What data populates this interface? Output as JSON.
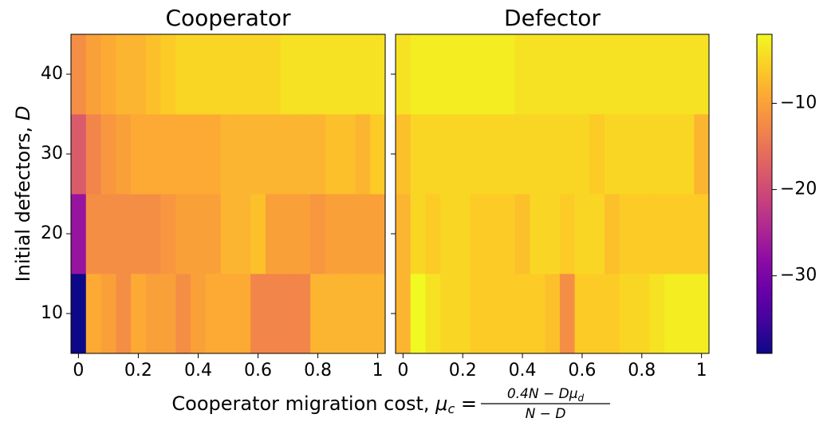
{
  "chart_data": {
    "type": "heatmap",
    "panels": [
      {
        "title": "Cooperator",
        "values": [
          [
            -39,
            -9,
            -10,
            -12,
            -9,
            -10,
            -10,
            -12,
            -10,
            -9,
            -9,
            -9,
            -13,
            -13,
            -13,
            -13,
            -8,
            -8,
            -8,
            -8,
            -8
          ],
          [
            -27,
            -12,
            -12,
            -12,
            -12,
            -12,
            -11,
            -10,
            -10,
            -10,
            -8,
            -8,
            -7,
            -10,
            -10,
            -10,
            -11,
            -10,
            -10,
            -10,
            -10
          ],
          [
            -18,
            -13,
            -11,
            -10,
            -9,
            -9,
            -9,
            -9,
            -9,
            -9,
            -8,
            -8,
            -8,
            -8,
            -8,
            -8,
            -8,
            -7,
            -7,
            -8,
            -6
          ],
          [
            -12,
            -10,
            -9,
            -8,
            -8,
            -7,
            -6,
            -5,
            -5,
            -5,
            -5,
            -5,
            -5,
            -5,
            -4,
            -4,
            -4,
            -4,
            -4,
            -4,
            -4
          ]
        ]
      },
      {
        "title": "Defector",
        "values": [
          [
            -8,
            -2,
            -4,
            -5,
            -5,
            -6,
            -6,
            -6,
            -6,
            -6,
            -7,
            -12,
            -6,
            -6,
            -6,
            -5,
            -5,
            -4,
            -3,
            -3,
            -3
          ],
          [
            -8,
            -5,
            -6,
            -5,
            -5,
            -6,
            -6,
            -6,
            -7,
            -5,
            -5,
            -6,
            -5,
            -5,
            -7,
            -6,
            -6,
            -6,
            -6,
            -6,
            -6
          ],
          [
            -7,
            -5,
            -5,
            -5,
            -5,
            -5,
            -5,
            -5,
            -5,
            -5,
            -5,
            -5,
            -5,
            -6,
            -5,
            -5,
            -5,
            -5,
            -5,
            -5,
            -8
          ],
          [
            -4,
            -3,
            -3,
            -3,
            -3,
            -3,
            -3,
            -3,
            -4,
            -4,
            -4,
            -4,
            -4,
            -4,
            -4,
            -4,
            -4,
            -4,
            -4,
            -4,
            -4
          ]
        ]
      }
    ],
    "x": [
      0,
      0.05,
      0.1,
      0.15,
      0.2,
      0.25,
      0.3,
      0.35,
      0.4,
      0.45,
      0.5,
      0.55,
      0.6,
      0.65,
      0.7,
      0.75,
      0.8,
      0.85,
      0.9,
      0.95,
      1
    ],
    "y": [
      10,
      20,
      30,
      40
    ],
    "xlim": [
      -0.025,
      1.025
    ],
    "ylim": [
      5,
      45
    ],
    "xticks": [
      0,
      0.2,
      0.4,
      0.6,
      0.8,
      1
    ],
    "yticks": [
      10,
      20,
      30,
      40
    ],
    "cmap": "plasma",
    "clim": [
      -39,
      -2
    ],
    "cticks": [
      {
        "value": -30,
        "label": "−30"
      },
      {
        "value": -20,
        "label": "−20"
      },
      {
        "value": -10,
        "label": "−10"
      }
    ],
    "xlabel": {
      "text": "Cooperator migration cost, ",
      "symbol": "μ",
      "sub": "c",
      "eq": " =",
      "numerator": "0.4N − Dμ",
      "numerator_sub": "d",
      "denominator": "N − D"
    },
    "ylabel": {
      "text": "Initial defectors, ",
      "symbol": "D"
    }
  }
}
